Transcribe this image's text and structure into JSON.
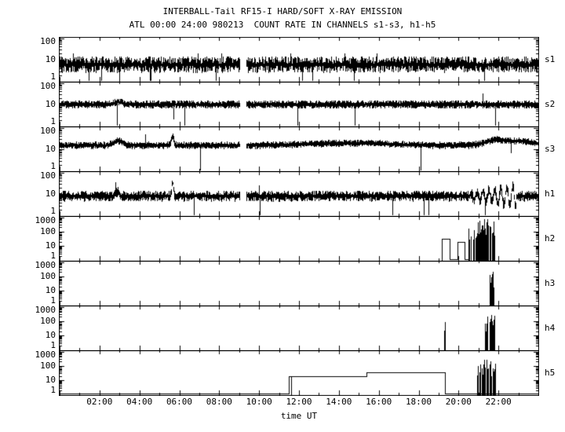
{
  "chart_data": {
    "type": "line",
    "title": "INTERBALL-Tail RF15-I HARD/SOFT X-RAY EMISSION",
    "subtitle": "ATL 00:00 24:00 980213  COUNT RATE IN CHANNELS s1-s3, h1-h5",
    "xlabel": "time UT",
    "x_range_hours": [
      0,
      24
    ],
    "grid": false,
    "legend": "none",
    "yscale": "log",
    "x_ticks": [
      {
        "h": 2,
        "label": "02:00"
      },
      {
        "h": 4,
        "label": "04:00"
      },
      {
        "h": 6,
        "label": "06:00"
      },
      {
        "h": 8,
        "label": "08:00"
      },
      {
        "h": 10,
        "label": "10:00"
      },
      {
        "h": 12,
        "label": "12:00"
      },
      {
        "h": 14,
        "label": "14:00"
      },
      {
        "h": 16,
        "label": "16:00"
      },
      {
        "h": 18,
        "label": "18:00"
      },
      {
        "h": 20,
        "label": "20:00"
      },
      {
        "h": 22,
        "label": "22:00"
      }
    ],
    "panels": [
      {
        "label": "s1",
        "ylim": [
          1,
          100
        ],
        "ytick_labels": [
          "100",
          "10",
          "1"
        ],
        "description": "continuous noisy count-rate band centred near 6 counts, span ~3-14, occasional needles down to 1, data gap 09:03-09:22",
        "level": 6,
        "noise_dex": 0.33,
        "needle_prob": 0.012,
        "gaps": [
          [
            9.05,
            9.37
          ]
        ],
        "humps": [],
        "downspikes": [
          [
            12.65,
            1.15
          ]
        ],
        "bursts": []
      },
      {
        "label": "s2",
        "ylim": [
          1,
          100
        ],
        "ytick_labels": [
          "100",
          "10",
          "1"
        ],
        "description": "narrow noisy band near 10 counts, small bump at ~02:55, needle down to ~2 at 05:43, data gap 09:03-09:22",
        "level": 10,
        "noise_dex": 0.14,
        "needle_prob": 0.006,
        "gaps": [
          [
            9.05,
            9.37
          ]
        ],
        "humps": [
          [
            2.95,
            0.25,
            3
          ]
        ],
        "downspikes": [
          [
            5.72,
            2.2
          ]
        ],
        "bursts": []
      },
      {
        "label": "s3",
        "ylim": [
          1,
          100
        ],
        "ytick_labels": [
          "100",
          "10",
          "1"
        ],
        "description": "band near 15 counts, bump to ~24 at 03:00, spike to ~37 at 05:40, broad hump 12:00-17:30, rise to ~27 after 21:30 with dip at 22:37, data gap 09:03-09:22",
        "level": 15,
        "noise_dex": 0.12,
        "needle_prob": 0.004,
        "gaps": [
          [
            9.05,
            9.37
          ]
        ],
        "humps": [
          [
            2.95,
            0.3,
            9
          ],
          [
            5.67,
            0.08,
            22
          ],
          [
            14.5,
            2.6,
            4
          ],
          [
            21.9,
            0.7,
            11
          ],
          [
            23.2,
            0.8,
            8
          ]
        ],
        "downspikes": [
          [
            22.62,
            7
          ]
        ],
        "bursts": []
      },
      {
        "label": "h1",
        "ylim": [
          1,
          100
        ],
        "ytick_labels": [
          "100",
          "10",
          "1"
        ],
        "description": "band near 8 counts, spike to ~32 at 05:40, data gap 09:03-09:22, growing quasi-periodic oscillations 20:33-22:54 spanning ~2-40",
        "level": 8,
        "noise_dex": 0.2,
        "needle_prob": 0.01,
        "gaps": [
          [
            9.05,
            9.37
          ]
        ],
        "humps": [
          [
            2.9,
            0.12,
            4
          ],
          [
            5.67,
            0.05,
            24
          ]
        ],
        "wiggle": [
          20.55,
          22.9,
          0.3,
          0.1,
          0.5
        ],
        "downspikes": [],
        "bursts": []
      },
      {
        "label": "h2",
        "ylim": [
          1,
          1000
        ],
        "ytick_labels": [
          "1000",
          "100",
          "10",
          "1"
        ],
        "description": "no counts until 19:09; square step at ~30 counts 19:09-19:33, step at ~20 counts 19:56-20:18, then dense saturated bursts 20:30-21:51 reaching 300-1000",
        "segments": [
          [
            19.15,
            19.55,
            30
          ],
          [
            19.55,
            19.93,
            1.25
          ],
          [
            19.93,
            20.3,
            20
          ],
          [
            20.3,
            20.5,
            1.25
          ]
        ],
        "bursts": [
          [
            20.5,
            20.72,
            300,
            0.75
          ],
          [
            20.78,
            21.0,
            400,
            0.8
          ],
          [
            21.05,
            21.5,
            700,
            0.88
          ],
          [
            21.55,
            21.85,
            500,
            0.85
          ]
        ]
      },
      {
        "label": "h3",
        "ylim": [
          1,
          1000
        ],
        "ytick_labels": [
          "1000",
          "100",
          "10",
          "1"
        ],
        "description": "empty except one dense burst 21:33-21:44 reaching ~200 counts",
        "segments": [],
        "bursts": [
          [
            21.55,
            21.74,
            200,
            0.9
          ]
        ]
      },
      {
        "label": "h4",
        "ylim": [
          1,
          1000
        ],
        "ytick_labels": [
          "1000",
          "100",
          "10",
          "1"
        ],
        "description": "single thin spike to ~90 at 19:17; dense bursts 21:18-21:30 and 21:34-21:47 reaching ~220-260",
        "segments": [],
        "bursts": [
          [
            19.29,
            19.33,
            90,
            1
          ],
          [
            21.3,
            21.5,
            220,
            0.85
          ],
          [
            21.56,
            21.78,
            260,
            0.85
          ]
        ]
      },
      {
        "label": "h5",
        "ylim": [
          1,
          1000
        ],
        "ytick_labels": [
          "1000",
          "100",
          "10",
          "1"
        ],
        "description": "baseline ~1 until 11:30, step to ~19 counts 11:30-15:24 (dropout at 11:37), step to ~34 counts 15:24-19:18, back to baseline, bursts 20:57-21:51 reaching ~140-260",
        "segments": [
          [
            0,
            11.5,
            1.3
          ],
          [
            11.5,
            15.4,
            19
          ],
          [
            15.4,
            19.3,
            34
          ],
          [
            19.3,
            24,
            1.3
          ]
        ],
        "downspikes": [
          [
            11.62,
            1.15
          ]
        ],
        "bursts": [
          [
            20.95,
            21.15,
            140,
            0.8
          ],
          [
            21.2,
            21.5,
            260,
            0.85
          ],
          [
            21.55,
            21.85,
            210,
            0.85
          ]
        ]
      }
    ]
  }
}
